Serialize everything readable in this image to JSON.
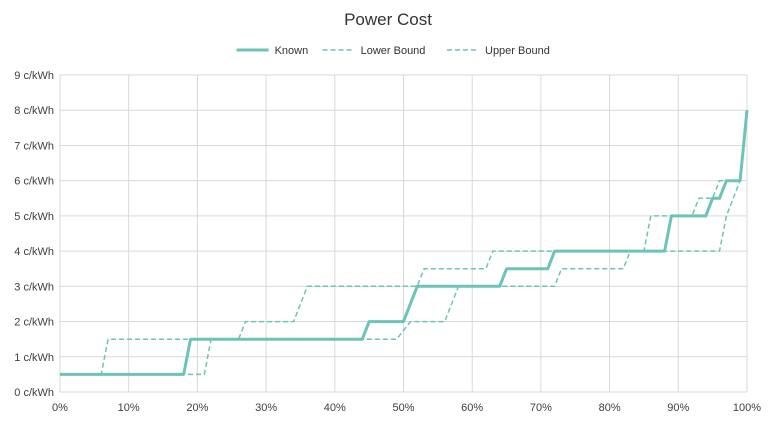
{
  "chart_data": {
    "type": "line",
    "title": "Power Cost",
    "xlabel": "",
    "ylabel": "",
    "x_unit": "%",
    "y_unit": "c/kWh",
    "xlim": [
      0,
      100
    ],
    "ylim": [
      0,
      9
    ],
    "x_ticks": [
      0,
      10,
      20,
      30,
      40,
      50,
      60,
      70,
      80,
      90,
      100
    ],
    "y_ticks": [
      0,
      1,
      2,
      3,
      4,
      5,
      6,
      7,
      8,
      9
    ],
    "x_tick_labels": [
      "0%",
      "10%",
      "20%",
      "30%",
      "40%",
      "50%",
      "60%",
      "70%",
      "80%",
      "90%",
      "100%"
    ],
    "y_tick_labels": [
      "0 c/kWh",
      "1 c/kWh",
      "2 c/kWh",
      "3 c/kWh",
      "4 c/kWh",
      "5 c/kWh",
      "6 c/kWh",
      "7 c/kWh",
      "8 c/kWh",
      "9 c/kWh"
    ],
    "grid": true,
    "legend_position": "top-center",
    "color": "#6cc3b7",
    "series": [
      {
        "name": "Known",
        "style": "solid",
        "points": [
          [
            0,
            0.5
          ],
          [
            18,
            0.5
          ],
          [
            19,
            1.5
          ],
          [
            44,
            1.5
          ],
          [
            45,
            2
          ],
          [
            50,
            2
          ],
          [
            52,
            3
          ],
          [
            64,
            3
          ],
          [
            65,
            3.5
          ],
          [
            71,
            3.5
          ],
          [
            72,
            4
          ],
          [
            88,
            4
          ],
          [
            89,
            5
          ],
          [
            94,
            5
          ],
          [
            95,
            5.5
          ],
          [
            96,
            5.5
          ],
          [
            97,
            6
          ],
          [
            99,
            6
          ],
          [
            100,
            8
          ]
        ]
      },
      {
        "name": "Lower Bound",
        "style": "dashed",
        "points": [
          [
            0,
            0.5
          ],
          [
            21,
            0.5
          ],
          [
            22,
            1.5
          ],
          [
            49,
            1.5
          ],
          [
            51,
            2
          ],
          [
            56,
            2
          ],
          [
            58,
            3
          ],
          [
            72,
            3
          ],
          [
            73,
            3.5
          ],
          [
            82,
            3.5
          ],
          [
            83,
            4
          ],
          [
            96,
            4
          ],
          [
            97,
            5
          ],
          [
            99,
            6
          ],
          [
            100,
            8
          ]
        ]
      },
      {
        "name": "Upper Bound",
        "style": "dashed",
        "points": [
          [
            0,
            0.5
          ],
          [
            6,
            0.5
          ],
          [
            7,
            1.5
          ],
          [
            26,
            1.5
          ],
          [
            27,
            2
          ],
          [
            34,
            2
          ],
          [
            36,
            3
          ],
          [
            52,
            3
          ],
          [
            53,
            3.5
          ],
          [
            62,
            3.5
          ],
          [
            63,
            4
          ],
          [
            85,
            4
          ],
          [
            86,
            5
          ],
          [
            92,
            5
          ],
          [
            93,
            5.5
          ],
          [
            95,
            5.5
          ],
          [
            96,
            6
          ],
          [
            99,
            6
          ],
          [
            100,
            8
          ]
        ]
      }
    ]
  }
}
